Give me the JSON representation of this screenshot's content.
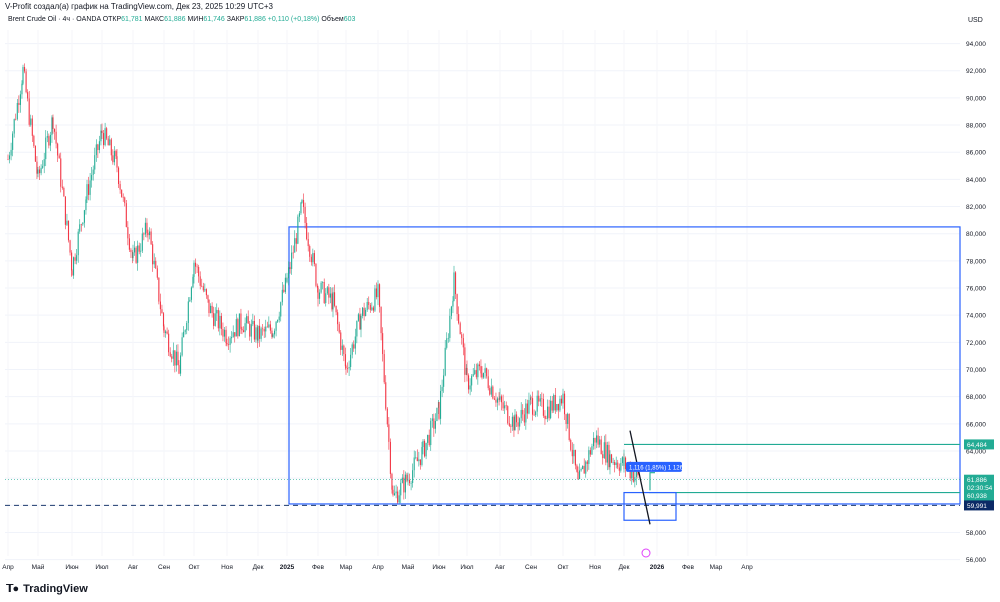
{
  "header": {
    "caption": "V-Profit создал(а) график на TradingView.com, Дек 23, 2025 10:29 UTC+3"
  },
  "legend": {
    "symbol": "Brent Crude Oil · 4ч · OANDA",
    "open_label": "ОТКР",
    "open": "61,781",
    "high_label": "МАКС",
    "high": "61,886",
    "low_label": "МИН",
    "low": "61,746",
    "close_label": "ЗАКР",
    "close": "61,886",
    "change": "+0,110 (+0,18%)",
    "volume_label": "Объем",
    "volume": "603"
  },
  "currency": "USD",
  "brand": {
    "name": "TradingView",
    "logo": "tradingview-logo-icon"
  },
  "colors": {
    "up": "#22ab94",
    "down": "#f23645",
    "rect": "#2962ff",
    "level": "#22ab94",
    "dashed": "#1e3a6e",
    "current_price_tag": "#22ab94",
    "support_tag": "#0b2a66",
    "measure_tag": "#2962ff"
  },
  "chart_data": {
    "type": "candlestick",
    "x_ticks": [
      "Апр",
      "Май",
      "Июн",
      "Июл",
      "Авг",
      "Сен",
      "Окт",
      "Ноя",
      "Дек",
      "2025",
      "Фев",
      "Мар",
      "Апр",
      "Май",
      "Июн",
      "Июл",
      "Авг",
      "Сен",
      "Окт",
      "Ноя",
      "Дек",
      "2026",
      "Фев",
      "Мар",
      "Апр"
    ],
    "y_ticks": [
      "94,000",
      "92,000",
      "90,000",
      "88,000",
      "86,000",
      "84,000",
      "82,000",
      "80,000",
      "78,000",
      "76,000",
      "74,000",
      "72,000",
      "70,000",
      "68,000",
      "66,000",
      "64,000",
      "62,000",
      "60,000",
      "58,000",
      "56,000"
    ],
    "ylim": [
      54.5,
      95.0
    ],
    "price_path": [
      [
        "Апр",
        85.5
      ],
      [
        "Апр",
        92.0
      ],
      [
        "Май",
        84.0
      ],
      [
        "Май",
        88.5
      ],
      [
        "Июн",
        77.5
      ],
      [
        "Июн",
        83.0
      ],
      [
        "Июл",
        87.5
      ],
      [
        "Июл",
        85.0
      ],
      [
        "Авг",
        78.0
      ],
      [
        "Авг",
        80.5
      ],
      [
        "Сен",
        73.0
      ],
      [
        "Сен",
        70.0
      ],
      [
        "Окт",
        78.0
      ],
      [
        "Окт",
        74.5
      ],
      [
        "Ноя",
        72.5
      ],
      [
        "Ноя",
        73.5
      ],
      [
        "Дек",
        72.5
      ],
      [
        "Дек",
        73.0
      ],
      [
        "2025",
        76.5
      ],
      [
        "2025",
        82.0
      ],
      [
        "Фев",
        76.0
      ],
      [
        "Фев",
        75.0
      ],
      [
        "Мар",
        70.0
      ],
      [
        "Мар",
        74.0
      ],
      [
        "Апр",
        75.5
      ],
      [
        "Апр",
        60.5
      ],
      [
        "Май",
        62.0
      ],
      [
        "Май",
        64.0
      ],
      [
        "Июн",
        67.0
      ],
      [
        "Июн",
        76.5
      ],
      [
        "Июл",
        69.0
      ],
      [
        "Июл",
        70.0
      ],
      [
        "Авг",
        67.5
      ],
      [
        "Авг",
        66.0
      ],
      [
        "Сен",
        67.5
      ],
      [
        "Сен",
        67.0
      ],
      [
        "Окт",
        68.0
      ],
      [
        "Окт",
        61.5
      ],
      [
        "Ноя",
        65.0
      ],
      [
        "Ноя",
        63.5
      ],
      [
        "Дек",
        63.0
      ],
      [
        "Дек",
        61.9
      ]
    ],
    "annotations": {
      "range_box": {
        "from": "2025",
        "to": "2026",
        "top": 80.5,
        "bottom": 60.1
      },
      "level_upper": 64.484,
      "level_lower": 60.938,
      "support_dashed": 59.991,
      "current_price": 61.886,
      "countdown": "02:30:54",
      "measure_label": "1,116 (1,85%) 1 126"
    },
    "price_tags": [
      {
        "value": "64,484",
        "price": 64.484
      },
      {
        "value": "61,886",
        "price": 61.886
      },
      {
        "value": "02:30:54",
        "price": 61.886
      },
      {
        "value": "60,938",
        "price": 60.938
      },
      {
        "value": "59,991",
        "price": 59.991
      }
    ]
  }
}
